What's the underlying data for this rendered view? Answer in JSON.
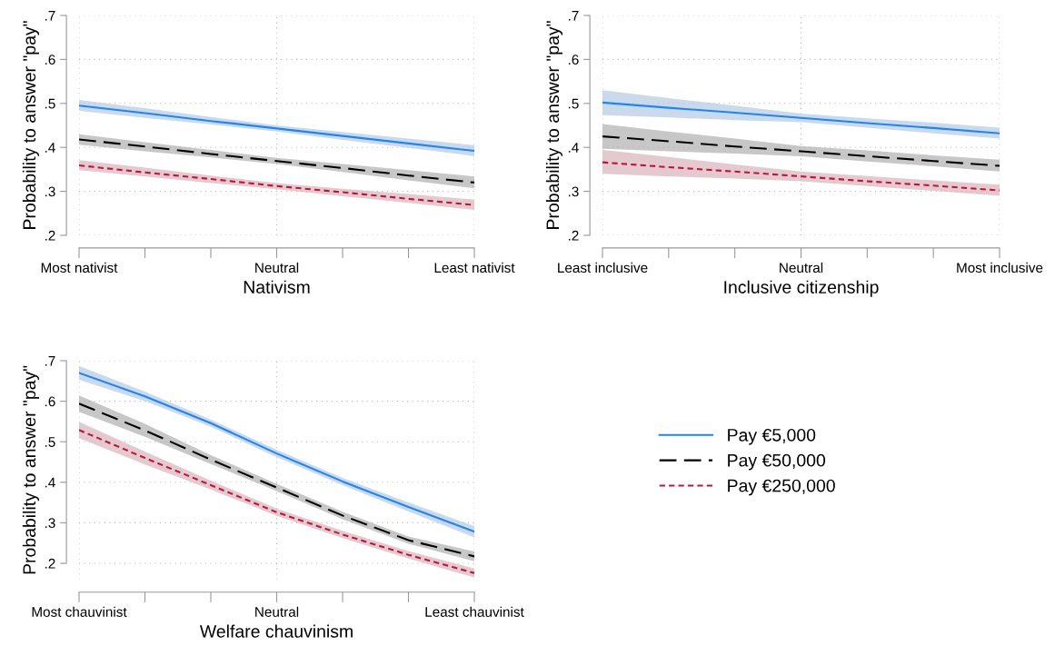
{
  "chart_data": [
    {
      "type": "line",
      "xlabel": "Nativism",
      "ylabel": "Probability to answer \"pay\"",
      "categories": [
        "Most nativist",
        null,
        null,
        "Neutral",
        null,
        null,
        "Least nativist"
      ],
      "ylim": [
        0.2,
        0.7
      ],
      "yticks": [
        {
          "value": 0.2,
          "label": ".2"
        },
        {
          "value": 0.3,
          "label": ".3"
        },
        {
          "value": 0.4,
          "label": ".4"
        },
        {
          "value": 0.5,
          "label": ".5"
        },
        {
          "value": 0.6,
          "label": ".6"
        },
        {
          "value": 0.7,
          "label": ".7"
        }
      ],
      "grid": true,
      "legend": false,
      "series": [
        {
          "color": "#1a85ff",
          "line_style": "solid",
          "values": [
            0.495,
            0.478,
            0.46,
            0.443,
            0.426,
            0.409,
            0.392
          ],
          "lower": [
            0.483,
            0.467,
            0.452,
            0.436,
            0.417,
            0.399,
            0.38
          ],
          "upper": [
            0.508,
            0.489,
            0.469,
            0.45,
            0.435,
            0.42,
            0.405
          ]
        },
        {
          "color": "#000000",
          "line_style": "dashed",
          "values": [
            0.418,
            0.402,
            0.385,
            0.369,
            0.353,
            0.336,
            0.32
          ],
          "lower": [
            0.406,
            0.391,
            0.377,
            0.362,
            0.344,
            0.325,
            0.307
          ],
          "upper": [
            0.43,
            0.412,
            0.394,
            0.376,
            0.362,
            0.348,
            0.334
          ]
        },
        {
          "color": "#c8103c",
          "line_style": "dotted",
          "values": [
            0.359,
            0.343,
            0.328,
            0.312,
            0.298,
            0.283,
            0.269
          ],
          "lower": [
            0.348,
            0.334,
            0.319,
            0.305,
            0.289,
            0.274,
            0.258
          ],
          "upper": [
            0.371,
            0.354,
            0.336,
            0.319,
            0.306,
            0.294,
            0.281
          ]
        }
      ]
    },
    {
      "type": "line",
      "xlabel": "Inclusive citizenship",
      "ylabel": "Probability to answer \"pay\"",
      "categories": [
        "Least inclusive",
        null,
        null,
        "Neutral",
        null,
        null,
        "Most inclusive"
      ],
      "ylim": [
        0.2,
        0.7
      ],
      "yticks": [
        {
          "value": 0.2,
          "label": ".2"
        },
        {
          "value": 0.3,
          "label": ".3"
        },
        {
          "value": 0.4,
          "label": ".4"
        },
        {
          "value": 0.5,
          "label": ".5"
        },
        {
          "value": 0.6,
          "label": ".6"
        },
        {
          "value": 0.7,
          "label": ".7"
        }
      ],
      "grid": true,
      "legend": false,
      "series": [
        {
          "color": "#1a85ff",
          "line_style": "solid",
          "values": [
            0.502,
            0.49,
            0.479,
            0.467,
            0.455,
            0.444,
            0.432
          ],
          "lower": [
            0.473,
            0.468,
            0.462,
            0.457,
            0.445,
            0.432,
            0.42
          ],
          "upper": [
            0.53,
            0.512,
            0.495,
            0.477,
            0.466,
            0.456,
            0.445
          ]
        },
        {
          "color": "#000000",
          "line_style": "dashed",
          "values": [
            0.425,
            0.414,
            0.402,
            0.391,
            0.38,
            0.369,
            0.358
          ],
          "lower": [
            0.397,
            0.391,
            0.386,
            0.38,
            0.368,
            0.357,
            0.345
          ],
          "upper": [
            0.453,
            0.436,
            0.42,
            0.403,
            0.393,
            0.382,
            0.372
          ]
        },
        {
          "color": "#c8103c",
          "line_style": "dotted",
          "values": [
            0.366,
            0.355,
            0.345,
            0.334,
            0.323,
            0.313,
            0.302
          ],
          "lower": [
            0.34,
            0.334,
            0.329,
            0.323,
            0.312,
            0.301,
            0.29
          ],
          "upper": [
            0.394,
            0.378,
            0.361,
            0.345,
            0.335,
            0.325,
            0.315
          ]
        }
      ]
    },
    {
      "type": "line",
      "xlabel": "Welfare chauvinism",
      "ylabel": "Probability to answer \"pay\"",
      "categories": [
        "Most chauvinist",
        null,
        null,
        "Neutral",
        null,
        null,
        "Least chauvinist"
      ],
      "ylim": [
        0.16,
        0.7
      ],
      "yticks": [
        {
          "value": 0.2,
          "label": ".2"
        },
        {
          "value": 0.3,
          "label": ".3"
        },
        {
          "value": 0.4,
          "label": ".4"
        },
        {
          "value": 0.5,
          "label": ".5"
        },
        {
          "value": 0.6,
          "label": ".6"
        },
        {
          "value": 0.7,
          "label": ".7"
        }
      ],
      "grid": true,
      "legend": "right",
      "series": [
        {
          "name": "Pay €5,000",
          "color": "#1a85ff",
          "line_style": "solid",
          "values": [
            0.67,
            0.612,
            0.546,
            0.471,
            0.402,
            0.339,
            0.278
          ],
          "lower": [
            0.653,
            0.6,
            0.537,
            0.462,
            0.393,
            0.328,
            0.264
          ],
          "upper": [
            0.687,
            0.624,
            0.555,
            0.48,
            0.411,
            0.35,
            0.292
          ]
        },
        {
          "name": "Pay €50,000",
          "color": "#000000",
          "line_style": "dashed",
          "values": [
            0.594,
            0.528,
            0.456,
            0.387,
            0.318,
            0.257,
            0.217
          ],
          "lower": [
            0.574,
            0.512,
            0.445,
            0.378,
            0.309,
            0.248,
            0.205
          ],
          "upper": [
            0.614,
            0.544,
            0.467,
            0.396,
            0.327,
            0.266,
            0.229
          ]
        },
        {
          "name": "Pay €250,000",
          "color": "#c8103c",
          "line_style": "dotted",
          "values": [
            0.529,
            0.46,
            0.393,
            0.326,
            0.271,
            0.221,
            0.176
          ],
          "lower": [
            0.509,
            0.444,
            0.382,
            0.317,
            0.262,
            0.212,
            0.165
          ],
          "upper": [
            0.549,
            0.476,
            0.404,
            0.335,
            0.28,
            0.23,
            0.187
          ]
        }
      ]
    }
  ]
}
